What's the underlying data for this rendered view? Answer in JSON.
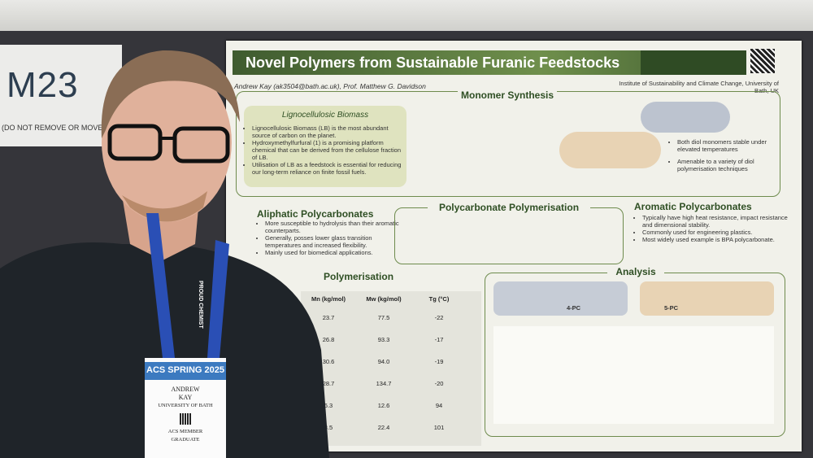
{
  "sign": {
    "number": "M23",
    "note": "(DO NOT REMOVE OR MOVE)"
  },
  "poster": {
    "title": "Novel Polymers from Sustainable Furanic Feedstocks",
    "authors": "Andrew Kay (ak3504@bath.ac.uk), Prof. Matthew G. Davidson",
    "affiliation": "Institute of Sustainability and Climate Change, University of Bath, UK",
    "monomer_heading": "Monomer Synthesis",
    "biomass_heading": "Lignocellulosic Biomass",
    "biomass_points": [
      "Lignocellulosic Biomass (LB) is the most abundant source of carbon on the planet.",
      "Hydroxymethylfurfural (1) is a promising platform chemical that can be derived from the cellulose fraction of LB.",
      "Utilisation of LB as a feedstock is essential for reducing our long-term reliance on finite fossil fuels."
    ],
    "monomer_points": [
      "Both diol monomers stable under elevated temperatures",
      "Amenable to a variety of diol polymerisation techniques"
    ],
    "aliphatic_heading": "Aliphatic Polycarbonates",
    "aliphatic_points": [
      "More susceptible to hydrolysis than their aromatic counterparts.",
      "Generally, posses lower glass transition temperatures and increased flexibility.",
      "Mainly used for biomedical applications."
    ],
    "pc_heading": "Polycarbonate Polymerisation",
    "aromatic_heading": "Aromatic Polycarbonates",
    "aromatic_points": [
      "Typically have high heat resistance, impact resistance and dimensional stability.",
      "Commonly used for engineering plastics.",
      "Most widely used example is BPA polycarbonate."
    ],
    "polymerisation_heading": "Polymerisation",
    "analysis_heading": "Analysis",
    "polymer_labels": [
      "4-PC",
      "5-PC"
    ]
  },
  "table": {
    "header": [
      "Mn (kg/mol)",
      "Mw (kg/mol)",
      "Tg (°C)"
    ],
    "rows": [
      [
        "23.7",
        "77.5",
        "-22"
      ],
      [
        "26.8",
        "93.3",
        "-17"
      ],
      [
        "30.6",
        "94.0",
        "-19"
      ],
      [
        "28.7",
        "134.7",
        "-20"
      ],
      [
        "6.3",
        "12.6",
        "94"
      ],
      [
        "8.5",
        "22.4",
        "101"
      ]
    ]
  },
  "badge": {
    "event": "ACS SPRING 2025",
    "first_name": "ANDREW",
    "last_name": "KAY",
    "affiliation": "UNIVERSITY OF BATH",
    "member": "ACS MEMBER",
    "grade": "GRADUATE",
    "lanyard": "PROUD CHEMIST"
  }
}
